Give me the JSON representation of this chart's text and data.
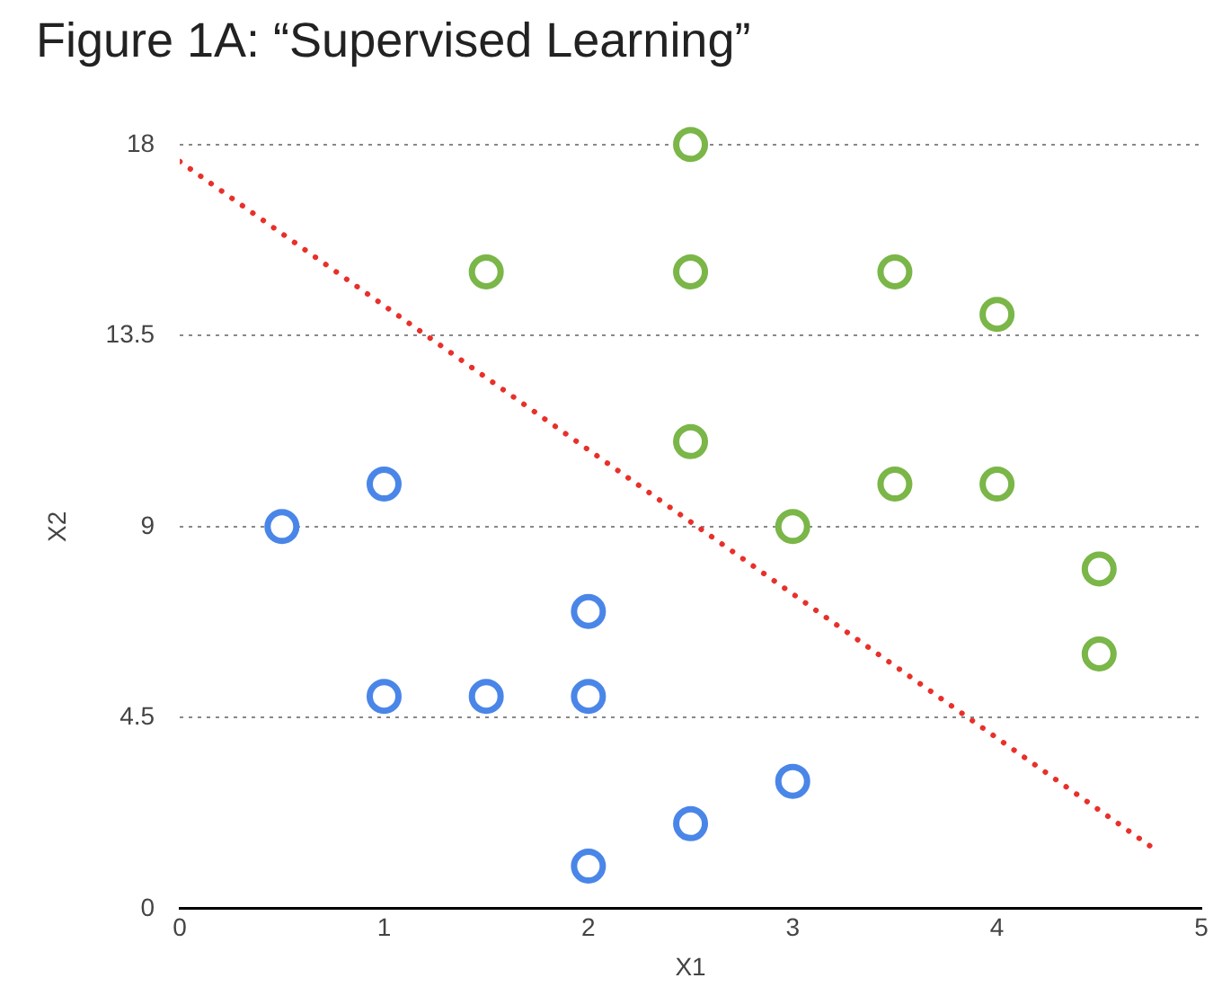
{
  "chart_data": {
    "type": "scatter",
    "title": "Figure 1A: “Supervised Learning”",
    "xlabel": "X1",
    "ylabel": "X2",
    "xlim": [
      0,
      5
    ],
    "xticks": [
      0,
      1,
      2,
      3,
      4,
      5
    ],
    "ylim": [
      0,
      18
    ],
    "yticks": [
      0,
      4.5,
      9,
      13.5,
      18
    ],
    "grid": "y",
    "legend": false,
    "series": [
      {
        "color": "#4a86e8",
        "marker": "circle",
        "x": [
          0.5,
          1,
          1,
          1.5,
          2,
          2,
          2,
          2.5,
          3
        ],
        "values": [
          9,
          10,
          5,
          5,
          5,
          7,
          1,
          2,
          3
        ]
      },
      {
        "color": "#7ab648",
        "marker": "circle",
        "x": [
          1.5,
          2.5,
          2.5,
          2.5,
          3,
          3.5,
          3.5,
          4,
          4,
          4.5,
          4.5
        ],
        "values": [
          15,
          18,
          15,
          11,
          9,
          15,
          10,
          14,
          10,
          8,
          6
        ]
      },
      {
        "type": "line",
        "color": "#e8302a",
        "marker": "none",
        "line_style": "dotted",
        "x": [
          0,
          4.78
        ],
        "values": [
          17.6,
          1.37
        ]
      }
    ]
  }
}
